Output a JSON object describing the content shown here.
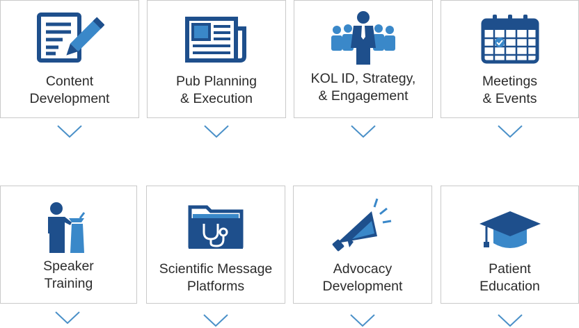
{
  "tiles": [
    {
      "id": "content-development",
      "lines": [
        "Content",
        "Development"
      ],
      "icon": "pencil-document-icon"
    },
    {
      "id": "pub-planning",
      "lines": [
        "Pub Planning",
        "& Execution"
      ],
      "icon": "newspaper-icon"
    },
    {
      "id": "kol-id",
      "lines": [
        "KOL ID, Strategy,",
        "& Engagement"
      ],
      "icon": "group-people-icon"
    },
    {
      "id": "meetings-events",
      "lines": [
        "Meetings",
        "& Events"
      ],
      "icon": "calendar-icon"
    },
    {
      "id": "speaker-training",
      "lines": [
        "Speaker",
        "Training"
      ],
      "icon": "speaker-podium-icon"
    },
    {
      "id": "scientific-message",
      "lines": [
        "Scientific Message",
        "Platforms"
      ],
      "icon": "folder-stethoscope-icon"
    },
    {
      "id": "advocacy-development",
      "lines": [
        "Advocacy",
        "Development"
      ],
      "icon": "megaphone-icon"
    },
    {
      "id": "patient-education",
      "lines": [
        "Patient",
        "Education"
      ],
      "icon": "graduation-cap-icon"
    }
  ],
  "colors": {
    "dark_blue": "#1e4f8c",
    "light_blue": "#3a88c9",
    "chevron": "#4a90c8",
    "border": "#c9c9c9",
    "text": "#2b2b2b"
  }
}
